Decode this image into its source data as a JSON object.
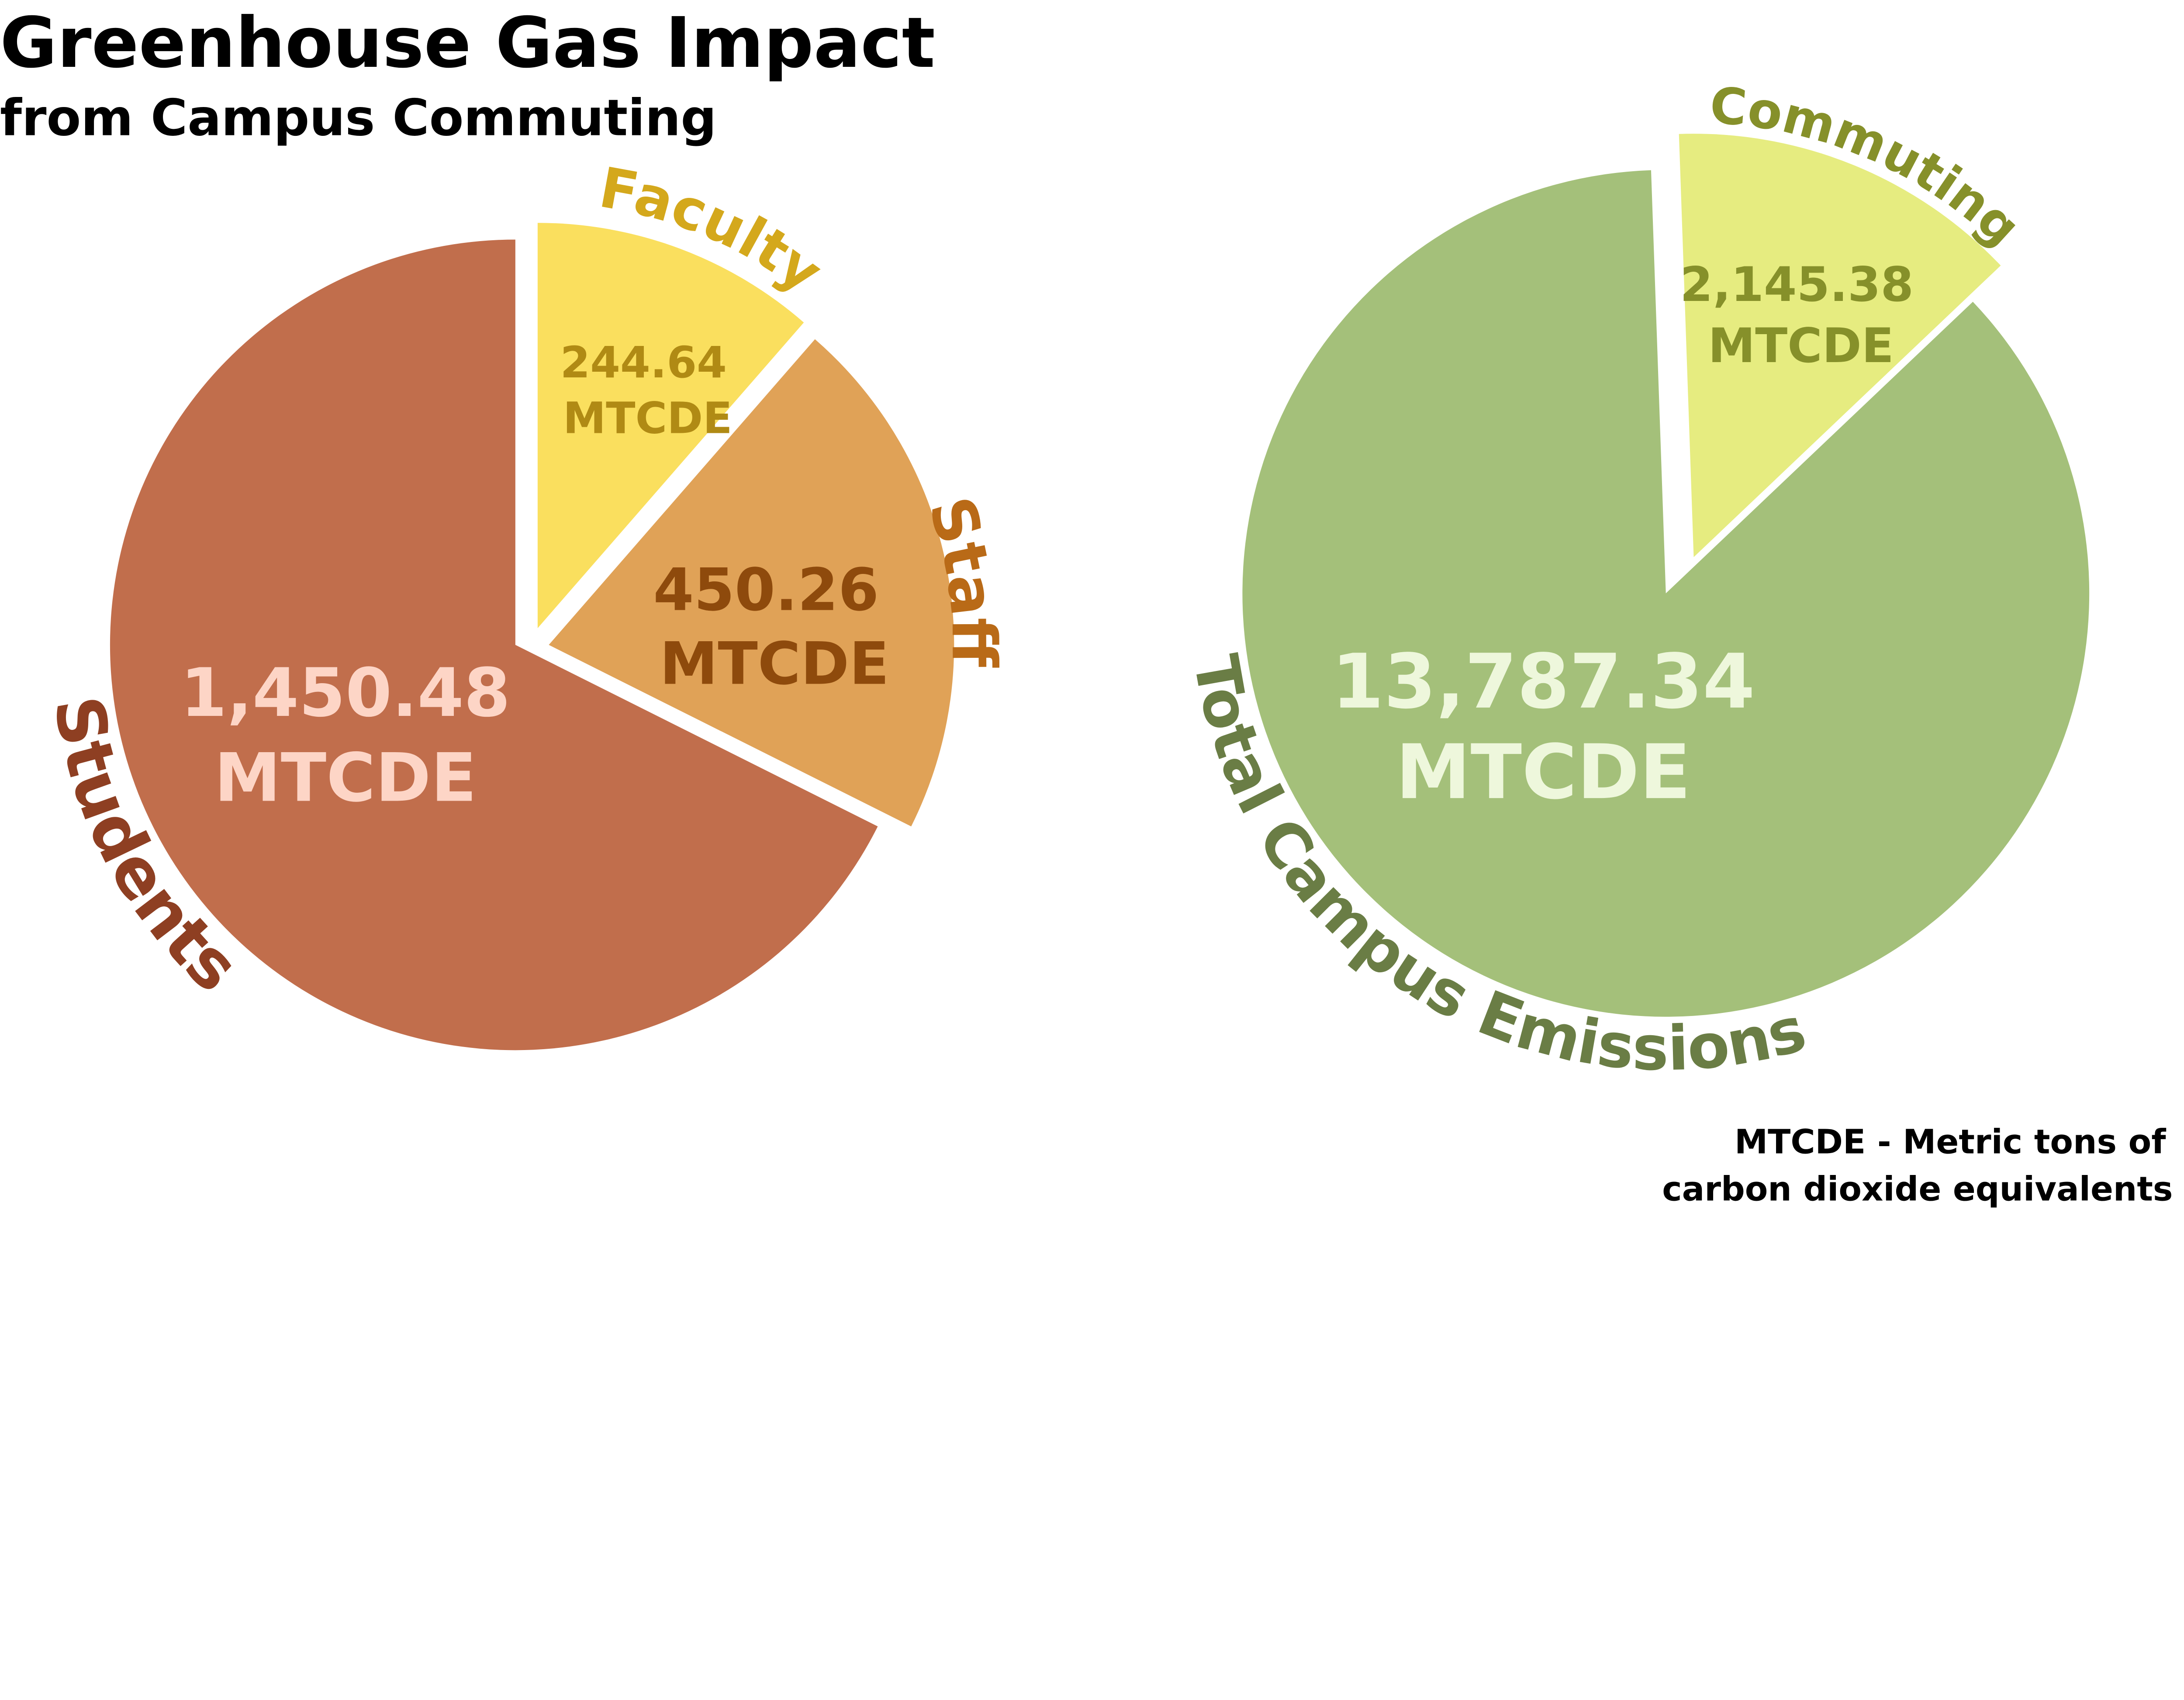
{
  "title": "Greenhouse Gas Impact",
  "subtitle": "from Campus Commuting",
  "footnote": [
    "MTCDE - Metric tons of",
    "carbon dioxide equivalents"
  ],
  "chart_data": [
    {
      "type": "pie",
      "unit": "MTCDE",
      "slices": [
        {
          "label": "Faculty",
          "value": 244.64,
          "display": "244.64",
          "color": "#FADF5E",
          "label_color": "#D4A81C",
          "value_color": "#B08A14"
        },
        {
          "label": "Staff",
          "value": 450.26,
          "display": "450.26",
          "color": "#E0A257",
          "label_color": "#B96A17",
          "value_color": "#8E4A0C"
        },
        {
          "label": "Students",
          "value": 1450.48,
          "display": "1,450.48",
          "color": "#C16E4C",
          "label_color": "#8E3F22",
          "value_color": "#FDD5C6"
        }
      ]
    },
    {
      "type": "pie",
      "unit": "MTCDE",
      "slices": [
        {
          "label": "Commuting",
          "value": 2145.38,
          "display": "2,145.38",
          "color": "#E6EC80",
          "label_color": "#86902A",
          "value_color": "#86902A"
        },
        {
          "label": "Total Campus Emissions",
          "value": 13787.34,
          "display": "13,787.34",
          "color": "#A4C07A",
          "label_color": "#6A7D45",
          "value_color": "#EEF7DC"
        }
      ]
    }
  ]
}
